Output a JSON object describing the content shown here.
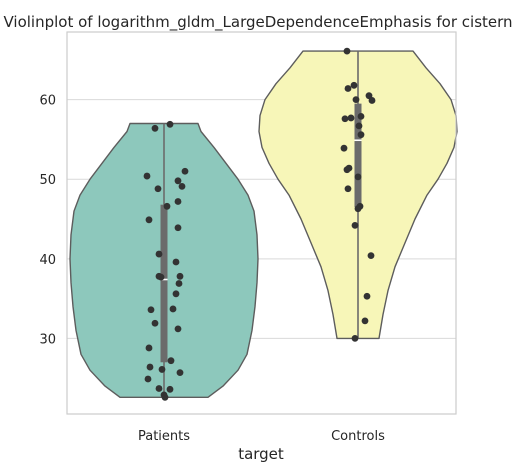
{
  "chart_data": {
    "type": "violin",
    "title": "Violinplot of logarithm_gldm_LargeDependenceEmphasis for cistern",
    "xlabel": "target",
    "ylabel": "",
    "categories": [
      "Patients",
      "Controls"
    ],
    "ylim": [
      20.5,
      68.5
    ],
    "yticks": [
      30,
      40,
      50,
      60
    ],
    "grid": true,
    "colors": {
      "Patients": "#8dc8bc",
      "Controls": "#f7f6b8",
      "outline": "#5d5d5d",
      "points": "#333333",
      "box": "#6b6b6b",
      "grid": "#d9d9d9"
    },
    "series": [
      {
        "category": "Patients",
        "min": 22.6,
        "q1": 27.0,
        "median": 37.4,
        "q3": 46.8,
        "max": 57.0,
        "density": [
          [
            22.6,
            0.44
          ],
          [
            24.0,
            0.59
          ],
          [
            26.0,
            0.74
          ],
          [
            28.0,
            0.83
          ],
          [
            31.0,
            0.88
          ],
          [
            34.0,
            0.91
          ],
          [
            37.0,
            0.93
          ],
          [
            40.0,
            0.94
          ],
          [
            43.0,
            0.93
          ],
          [
            46.0,
            0.9
          ],
          [
            48.0,
            0.84
          ],
          [
            50.0,
            0.74
          ],
          [
            52.0,
            0.62
          ],
          [
            54.0,
            0.5
          ],
          [
            56.0,
            0.37
          ],
          [
            57.0,
            0.34
          ]
        ],
        "points": [
          [
            0.06,
            56.9
          ],
          [
            -0.09,
            56.4
          ],
          [
            0.21,
            51.0
          ],
          [
            -0.17,
            50.4
          ],
          [
            0.14,
            49.8
          ],
          [
            0.18,
            49.1
          ],
          [
            -0.06,
            48.8
          ],
          [
            0.14,
            47.2
          ],
          [
            0.03,
            46.6
          ],
          [
            -0.15,
            44.9
          ],
          [
            0.14,
            43.9
          ],
          [
            -0.05,
            40.6
          ],
          [
            0.12,
            39.6
          ],
          [
            0.16,
            37.8
          ],
          [
            -0.05,
            37.8
          ],
          [
            -0.03,
            37.7
          ],
          [
            0.15,
            36.9
          ],
          [
            0.12,
            35.6
          ],
          [
            0.09,
            33.7
          ],
          [
            -0.13,
            33.6
          ],
          [
            -0.09,
            31.9
          ],
          [
            0.14,
            31.2
          ],
          [
            -0.15,
            28.8
          ],
          [
            0.07,
            27.2
          ],
          [
            -0.14,
            26.4
          ],
          [
            -0.02,
            26.1
          ],
          [
            0.16,
            25.7
          ],
          [
            -0.16,
            24.9
          ],
          [
            -0.05,
            23.7
          ],
          [
            0.06,
            23.6
          ],
          [
            0.0,
            22.9
          ],
          [
            0.01,
            22.6
          ]
        ]
      },
      {
        "category": "Controls",
        "min": 30.0,
        "q1": 46.5,
        "median": 54.9,
        "q3": 59.5,
        "max": 66.1,
        "density": [
          [
            30.0,
            0.21
          ],
          [
            33.0,
            0.25
          ],
          [
            36.0,
            0.3
          ],
          [
            39.0,
            0.37
          ],
          [
            42.0,
            0.47
          ],
          [
            45.0,
            0.57
          ],
          [
            48.0,
            0.69
          ],
          [
            50.0,
            0.8
          ],
          [
            52.0,
            0.89
          ],
          [
            54.0,
            0.96
          ],
          [
            56.0,
            0.99
          ],
          [
            58.0,
            0.98
          ],
          [
            60.0,
            0.93
          ],
          [
            62.0,
            0.82
          ],
          [
            64.0,
            0.68
          ],
          [
            66.1,
            0.55
          ]
        ],
        "points": [
          [
            -0.11,
            66.1
          ],
          [
            -0.04,
            61.8
          ],
          [
            -0.1,
            61.4
          ],
          [
            0.11,
            60.5
          ],
          [
            0.14,
            59.9
          ],
          [
            -0.02,
            60.0
          ],
          [
            0.03,
            57.9
          ],
          [
            -0.13,
            57.6
          ],
          [
            -0.07,
            57.7
          ],
          [
            0.01,
            56.7
          ],
          [
            0.03,
            55.6
          ],
          [
            -0.14,
            53.9
          ],
          [
            -0.09,
            51.4
          ],
          [
            -0.11,
            51.2
          ],
          [
            0.0,
            50.3
          ],
          [
            -0.1,
            48.8
          ],
          [
            0.02,
            46.6
          ],
          [
            0.0,
            46.3
          ],
          [
            -0.03,
            44.2
          ],
          [
            0.13,
            40.4
          ],
          [
            0.09,
            35.3
          ],
          [
            0.07,
            32.2
          ],
          [
            -0.03,
            30.0
          ]
        ]
      }
    ]
  }
}
